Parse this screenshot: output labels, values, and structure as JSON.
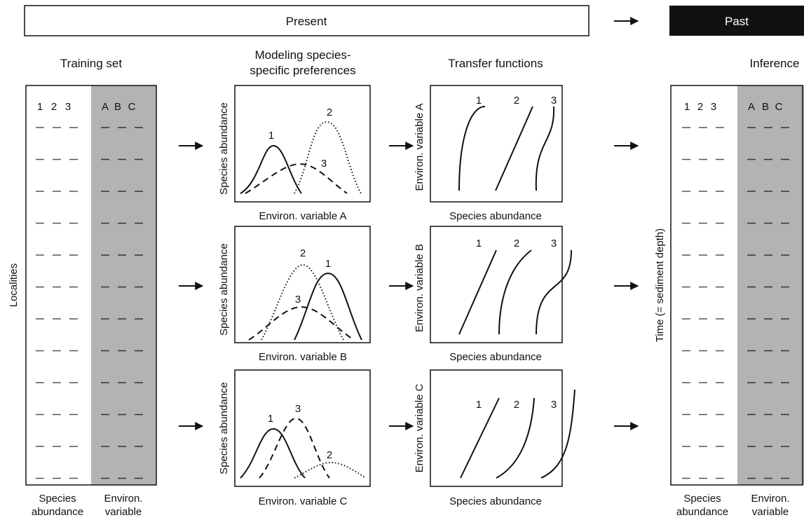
{
  "header": {
    "present_label": "Present",
    "past_label": "Past"
  },
  "columns": {
    "training_title": "Training set",
    "modeling_title_line1": "Modeling species-",
    "modeling_title_line2": "specific preferences",
    "transfer_title": "Transfer functions",
    "inference_title": "Inference"
  },
  "training": {
    "species_headers": [
      "1",
      "2",
      "3"
    ],
    "env_headers": [
      "A",
      "B",
      "C"
    ],
    "row_count": 12,
    "side_label": "Localities",
    "bottom_left_line1": "Species",
    "bottom_left_line2": "abundance",
    "bottom_right_line1": "Environ.",
    "bottom_right_line2": "variable"
  },
  "inference": {
    "species_headers": [
      "1",
      "2",
      "3"
    ],
    "env_headers": [
      "A",
      "B",
      "C"
    ],
    "row_count": 12,
    "side_label": "Time (= sediment depth)",
    "bottom_left_line1": "Species",
    "bottom_left_line2": "abundance",
    "bottom_right_line1": "Environ.",
    "bottom_right_line2": "variable"
  },
  "modeling_panels": [
    {
      "ylabel": "Species abundance",
      "xlabel": "Environ. variable A",
      "curve_labels": [
        "1",
        "2",
        "3"
      ]
    },
    {
      "ylabel": "Species abundance",
      "xlabel": "Environ. variable B",
      "curve_labels": [
        "1",
        "2",
        "3"
      ]
    },
    {
      "ylabel": "Species abundance",
      "xlabel": "Environ. variable C",
      "curve_labels": [
        "1",
        "2",
        "3"
      ]
    }
  ],
  "transfer_panels": [
    {
      "ylabel": "Environ. variable A",
      "xlabel": "Species abundance",
      "curve_labels": [
        "1",
        "2",
        "3"
      ]
    },
    {
      "ylabel": "Environ. variable B",
      "xlabel": "Species abundance",
      "curve_labels": [
        "1",
        "2",
        "3"
      ]
    },
    {
      "ylabel": "Environ. variable C",
      "xlabel": "Species abundance",
      "curve_labels": [
        "1",
        "2",
        "3"
      ]
    }
  ],
  "colors": {
    "ink": "#111111",
    "env_fill": "#b3b3b3",
    "dash_on_white": "#555555",
    "dash_on_gray": "#333333",
    "past_fill": "#111111",
    "past_text": "#ffffff"
  },
  "icons": {
    "flow_arrow": "right-arrow-icon"
  }
}
